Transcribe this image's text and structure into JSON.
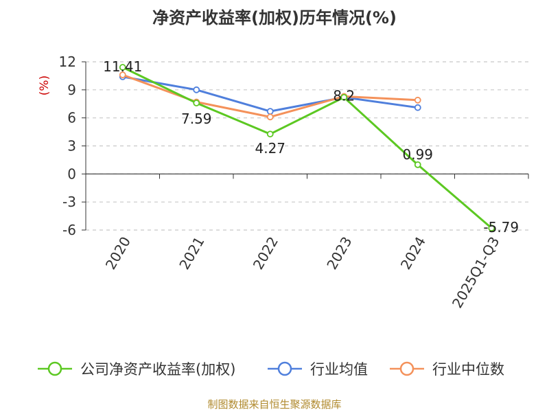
{
  "title": "净资产收益率(加权)历年情况(%)",
  "source": "制图数据来自恒生聚源数据库",
  "chart_data": {
    "type": "line",
    "title": "净资产收益率(加权)历年情况(%)",
    "ylabel": "(%)",
    "xlabel": "",
    "categories": [
      "2020",
      "2021",
      "2022",
      "2023",
      "2024",
      "2025Q1-Q3"
    ],
    "ylim": [
      -6,
      12
    ],
    "yticks": [
      "12",
      "9",
      "6",
      "3",
      "0",
      "-3",
      "-6"
    ],
    "grid": true,
    "legend_position": "bottom",
    "series": [
      {
        "name": "公司净资产收益率(加权)",
        "color": "#5cc822",
        "values": [
          11.41,
          7.59,
          4.27,
          8.2,
          0.99,
          -5.79
        ],
        "labels": [
          "11.41",
          "7.59",
          "4.27",
          "8.2",
          "0.99",
          "-5.79"
        ]
      },
      {
        "name": "行业均值",
        "color": "#4f7fdc",
        "values": [
          10.4,
          9.0,
          6.7,
          8.2,
          7.1,
          null
        ]
      },
      {
        "name": "行业中位数",
        "color": "#f4915a",
        "values": [
          10.6,
          7.7,
          6.1,
          8.3,
          7.9,
          null
        ]
      }
    ]
  }
}
